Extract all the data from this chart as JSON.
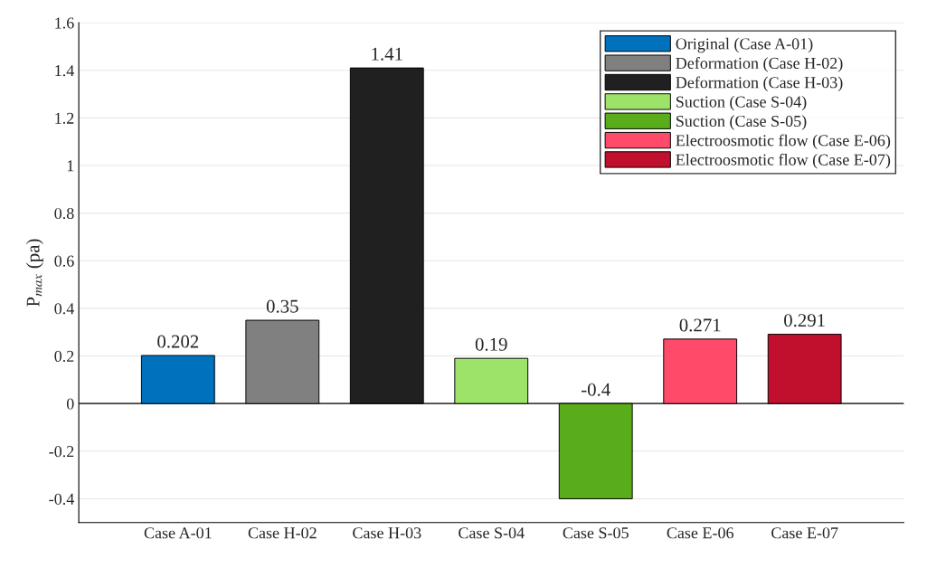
{
  "chart_data": {
    "type": "bar",
    "ylabel": "P$_{max}$ (pa)",
    "categories": [
      "Case A-01",
      "Case H-02",
      "Case H-03",
      "Case S-04",
      "Case S-05",
      "Case E-06",
      "Case E-07"
    ],
    "series": [
      {
        "name": "Original (Case A-01)",
        "color": "#0072bd",
        "values": [
          0.202,
          null,
          null,
          null,
          null,
          null,
          null
        ]
      },
      {
        "name": "Deformation (Case H-02)",
        "color": "#808080",
        "values": [
          null,
          0.35,
          null,
          null,
          null,
          null,
          null
        ]
      },
      {
        "name": "Deformation (Case H-03)",
        "color": "#202020",
        "values": [
          null,
          null,
          1.41,
          null,
          null,
          null,
          null
        ]
      },
      {
        "name": "Suction (Case S-04)",
        "color": "#9de36a",
        "values": [
          null,
          null,
          null,
          0.19,
          null,
          null,
          null
        ]
      },
      {
        "name": "Suction (Case S-05)",
        "color": "#5aad1a",
        "values": [
          null,
          null,
          null,
          null,
          -0.4,
          null,
          null
        ]
      },
      {
        "name": "Electroosmotic flow (Case E-06)",
        "color": "#ff4a6a",
        "values": [
          null,
          null,
          null,
          null,
          null,
          0.271,
          null
        ]
      },
      {
        "name": "Electroosmotic flow (Case E-07)",
        "color": "#c0102e",
        "values": [
          null,
          null,
          null,
          null,
          null,
          null,
          0.291
        ]
      }
    ],
    "ylim": [
      -0.5,
      1.6
    ],
    "yticks": [
      -0.4,
      -0.2,
      0,
      0.2,
      0.4,
      0.6,
      0.8,
      1,
      1.2,
      1.4,
      1.6
    ],
    "ref_lines": [
      {
        "axis": "y",
        "value": 0,
        "color": "#000000",
        "line_style": "solid"
      }
    ],
    "data_labels": true,
    "grid": "y",
    "legend": "top right"
  }
}
